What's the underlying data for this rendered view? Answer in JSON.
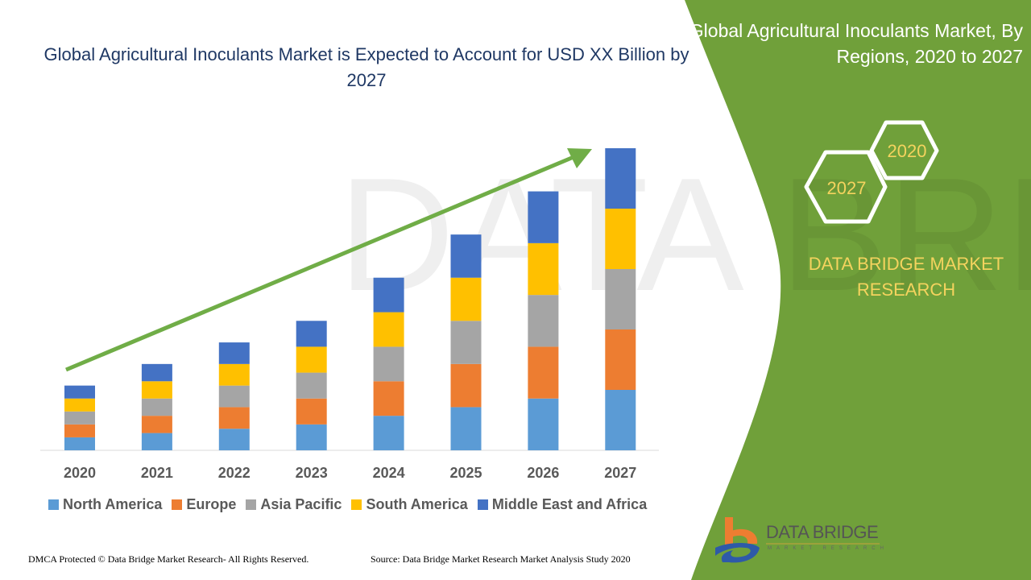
{
  "title": "Global Agricultural Inoculants Market is Expected to Account for USD XX Billion by 2027",
  "side_panel": {
    "title": "Global Agricultural Inoculants Market, By Regions, 2020 to 2027",
    "hex_start": "2020",
    "hex_end": "2027",
    "brand": "DATA BRIDGE MARKET RESEARCH",
    "logo_name": "DATA BRIDGE",
    "logo_sub": "MARKET RESEARCH",
    "color": "#70a03a"
  },
  "footer": {
    "left": "DMCA Protected © Data Bridge Market Research- All Rights Reserved.",
    "right": "Source: Data Bridge Market Research Market Analysis Study 2020"
  },
  "chart_data": {
    "type": "bar",
    "stacked": true,
    "title": "Global Agricultural Inoculants Market is Expected to Account for USD XX Billion by 2027",
    "categories": [
      "2020",
      "2021",
      "2022",
      "2023",
      "2024",
      "2025",
      "2026",
      "2027"
    ],
    "series": [
      {
        "name": "North America",
        "color": "#5b9bd5",
        "values": [
          3,
          4,
          5,
          6,
          8,
          10,
          12,
          14
        ]
      },
      {
        "name": "Europe",
        "color": "#ed7d31",
        "values": [
          3,
          4,
          5,
          6,
          8,
          10,
          12,
          14
        ]
      },
      {
        "name": "Asia Pacific",
        "color": "#a5a5a5",
        "values": [
          3,
          4,
          5,
          6,
          8,
          10,
          12,
          14
        ]
      },
      {
        "name": "South America",
        "color": "#ffc000",
        "values": [
          3,
          4,
          5,
          6,
          8,
          10,
          12,
          14
        ]
      },
      {
        "name": "Middle East and Africa",
        "color": "#4472c4",
        "values": [
          3,
          4,
          5,
          6,
          8,
          10,
          12,
          14
        ]
      }
    ],
    "ylim": [
      0,
      70
    ],
    "y_axis_shown": false,
    "grid": false,
    "legend_position": "bottom",
    "trend_arrow_color": "#70ad47"
  }
}
